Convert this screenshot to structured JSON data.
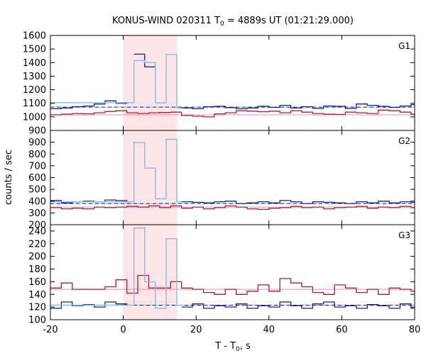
{
  "chart_data": {
    "type": "line",
    "title_prefix": "KONUS-WIND 020311 T",
    "title_sub": "0",
    "title_suffix": " = 4889s UT (01:21:29.000)",
    "xlabel_prefix": "T - T",
    "xlabel_sub": "0",
    "xlabel_suffix": ", s",
    "ylabel": "counts / sec",
    "xlim": [
      -20,
      80
    ],
    "xticks": [
      -20,
      0,
      20,
      40,
      60,
      80
    ],
    "highlight_interval": [
      0,
      14.8
    ],
    "colors": {
      "dark_blue": "#1a1a9c",
      "light_blue": "#7fbfe8",
      "red": "#b01c2e",
      "dashed_blue": "#1a1a9c",
      "pink_fit": "#f08ab8",
      "cyan_fit": "#70d8d8",
      "highlight": "#fde4e6"
    },
    "panels": [
      {
        "label": "G1",
        "ylim": [
          900,
          1600
        ],
        "yticks": [
          900,
          1000,
          1100,
          1200,
          1300,
          1400,
          1500,
          1600
        ],
        "bg_level_blue": 1072,
        "bg_level_red": 1015,
        "fine_light_blue": [
          {
            "x0": -20,
            "x1": 0,
            "y": 1105
          },
          {
            "x0": 0,
            "x1": 2.944,
            "y": 1105
          },
          {
            "x0": 2.944,
            "x1": 5.888,
            "y": 1415
          },
          {
            "x0": 5.888,
            "x1": 8.832,
            "y": 1400
          },
          {
            "x0": 8.832,
            "x1": 11.776,
            "y": 1103
          },
          {
            "x0": 11.776,
            "x1": 14.72,
            "y": 1460
          },
          {
            "x0": 14.72,
            "x1": 16,
            "y": 1065
          }
        ],
        "fine_dark_blue": [
          {
            "x0": 2.944,
            "x1": 5.888,
            "y": 1462
          },
          {
            "x0": 5.888,
            "x1": 8.832,
            "y": 1368
          }
        ],
        "blue_series": {
          "x": [
            -20,
            -17,
            -14,
            -11,
            -8,
            -5,
            -2,
            1,
            4,
            7,
            10,
            13,
            16,
            19,
            22,
            25,
            28,
            31,
            34,
            37,
            40,
            43,
            46,
            49,
            52,
            55,
            58,
            61,
            64,
            67,
            70,
            73,
            76,
            79,
            80
          ],
          "y": [
            1060,
            1065,
            1075,
            1080,
            1095,
            1118,
            1100,
            1105,
            1105,
            1105,
            1105,
            1105,
            1065,
            1060,
            1075,
            1078,
            1068,
            1060,
            1065,
            1078,
            1070,
            1085,
            1065,
            1075,
            1062,
            1080,
            1078,
            1062,
            1095,
            1085,
            1078,
            1070,
            1080,
            1090,
            1090
          ]
        },
        "red_series": {
          "x": [
            -20,
            -17,
            -14,
            -11,
            -8,
            -5,
            -2,
            1,
            4,
            7,
            10,
            13,
            16,
            19,
            22,
            25,
            28,
            31,
            34,
            37,
            40,
            43,
            46,
            49,
            52,
            55,
            58,
            61,
            64,
            67,
            70,
            73,
            76,
            79,
            80
          ],
          "y": [
            1015,
            1020,
            1025,
            1023,
            1030,
            1040,
            1045,
            1030,
            1025,
            1030,
            1032,
            1035,
            1010,
            1005,
            1000,
            1022,
            1030,
            1045,
            1042,
            1038,
            1042,
            1030,
            1045,
            1035,
            1025,
            1020,
            1018,
            1035,
            1030,
            1025,
            1050,
            1045,
            1035,
            1020,
            1020
          ]
        }
      },
      {
        "label": "G2",
        "ylim": [
          200,
          1000
        ],
        "yticks": [
          200,
          300,
          400,
          500,
          600,
          700,
          800,
          900
        ],
        "bg_level_blue": 380,
        "bg_level_red": 350,
        "fine_light_blue": [
          {
            "x0": -20,
            "x1": 0,
            "y": 395
          },
          {
            "x0": 0,
            "x1": 2.944,
            "y": 395
          },
          {
            "x0": 2.944,
            "x1": 5.888,
            "y": 898
          },
          {
            "x0": 5.888,
            "x1": 8.832,
            "y": 680
          },
          {
            "x0": 8.832,
            "x1": 11.776,
            "y": 420
          },
          {
            "x0": 11.776,
            "x1": 14.72,
            "y": 925
          },
          {
            "x0": 14.72,
            "x1": 16,
            "y": 395
          }
        ],
        "fine_dark_blue": [],
        "blue_series": {
          "x": [
            -20,
            -17,
            -14,
            -11,
            -8,
            -5,
            -2,
            1,
            4,
            7,
            10,
            13,
            16,
            19,
            22,
            25,
            28,
            31,
            34,
            37,
            40,
            43,
            46,
            49,
            52,
            55,
            58,
            61,
            64,
            67,
            70,
            73,
            76,
            79,
            80
          ],
          "y": [
            405,
            385,
            395,
            400,
            395,
            410,
            405,
            395,
            395,
            395,
            395,
            395,
            395,
            390,
            385,
            395,
            400,
            380,
            385,
            395,
            385,
            405,
            395,
            380,
            395,
            390,
            385,
            380,
            395,
            385,
            400,
            385,
            395,
            390,
            390
          ]
        },
        "red_series": {
          "x": [
            -20,
            -17,
            -14,
            -11,
            -8,
            -5,
            -2,
            1,
            4,
            7,
            10,
            13,
            16,
            19,
            22,
            25,
            28,
            31,
            34,
            37,
            40,
            43,
            46,
            49,
            52,
            55,
            58,
            61,
            64,
            67,
            70,
            73,
            76,
            79,
            80
          ],
          "y": [
            345,
            335,
            340,
            335,
            350,
            345,
            350,
            355,
            350,
            360,
            345,
            360,
            340,
            350,
            335,
            345,
            360,
            350,
            335,
            330,
            340,
            345,
            355,
            345,
            350,
            335,
            345,
            350,
            355,
            340,
            350,
            345,
            355,
            345,
            345
          ]
        }
      },
      {
        "label": "G3",
        "ylim": [
          100,
          250
        ],
        "yticks": [
          100,
          120,
          140,
          160,
          180,
          200,
          220,
          240
        ],
        "bg_level_blue": 123,
        "bg_level_red": 148,
        "fine_light_blue": [
          {
            "x0": -20,
            "x1": 0,
            "y": 123
          },
          {
            "x0": 0,
            "x1": 2.944,
            "y": 123
          },
          {
            "x0": 2.944,
            "x1": 5.888,
            "y": 245
          },
          {
            "x0": 5.888,
            "x1": 8.832,
            "y": 160
          },
          {
            "x0": 8.832,
            "x1": 11.776,
            "y": 118
          },
          {
            "x0": 11.776,
            "x1": 14.72,
            "y": 228
          },
          {
            "x0": 14.72,
            "x1": 16,
            "y": 123
          }
        ],
        "fine_dark_blue": [],
        "blue_series": {
          "x": [
            -20,
            -17,
            -14,
            -11,
            -8,
            -5,
            -2,
            1,
            4,
            7,
            10,
            13,
            16,
            19,
            22,
            25,
            28,
            31,
            34,
            37,
            40,
            43,
            46,
            49,
            52,
            55,
            58,
            61,
            64,
            67,
            70,
            73,
            76,
            79,
            80
          ],
          "y": [
            118,
            128,
            122,
            124,
            120,
            128,
            125,
            124,
            124,
            124,
            124,
            124,
            120,
            125,
            118,
            122,
            120,
            125,
            118,
            122,
            120,
            128,
            122,
            118,
            125,
            128,
            120,
            122,
            118,
            124,
            122,
            118,
            125,
            118,
            118
          ]
        },
        "red_series": {
          "x": [
            -20,
            -17,
            -14,
            -11,
            -8,
            -5,
            -2,
            1,
            4,
            7,
            10,
            13,
            16,
            19,
            22,
            25,
            28,
            31,
            34,
            37,
            40,
            43,
            46,
            49,
            52,
            55,
            58,
            61,
            64,
            67,
            70,
            73,
            76,
            79,
            80
          ],
          "y": [
            150,
            158,
            148,
            148,
            148,
            152,
            163,
            142,
            170,
            150,
            150,
            160,
            150,
            148,
            143,
            140,
            148,
            140,
            145,
            155,
            145,
            165,
            158,
            152,
            143,
            140,
            155,
            150,
            143,
            148,
            140,
            150,
            148,
            145,
            145
          ]
        }
      }
    ]
  }
}
